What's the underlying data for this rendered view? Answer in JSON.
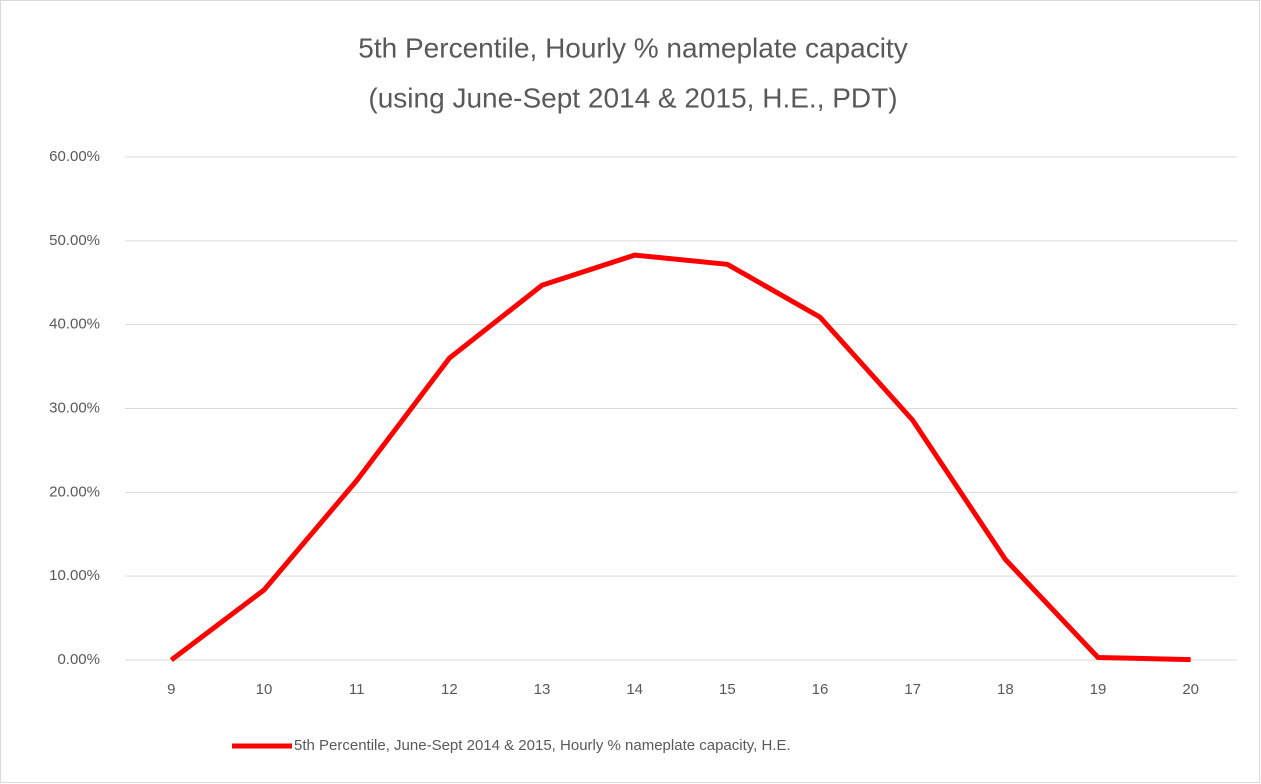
{
  "chart_data": {
    "type": "line",
    "title": "5th Percentile, Hourly % nameplate capacity",
    "subtitle": "(using June-Sept 2014 & 2015, H.E., PDT)",
    "categories": [
      "9",
      "10",
      "11",
      "12",
      "13",
      "14",
      "15",
      "16",
      "17",
      "18",
      "19",
      "20"
    ],
    "series": [
      {
        "name": "5th Percentile, June-Sept 2014 & 2015, Hourly % nameplate capacity, H.E.",
        "color": "#ff0000",
        "values": [
          0,
          8.35,
          21.4,
          36.0,
          44.7,
          48.3,
          47.2,
          40.9,
          28.6,
          12.0,
          0.3,
          0.05
        ]
      }
    ],
    "ylim": [
      0,
      60
    ],
    "yticks": [
      {
        "value": 0,
        "label": "0.00%"
      },
      {
        "value": 10,
        "label": "10.00%"
      },
      {
        "value": 20,
        "label": "20.00%"
      },
      {
        "value": 30,
        "label": "30.00%"
      },
      {
        "value": 40,
        "label": "40.00%"
      },
      {
        "value": 50,
        "label": "50.00%"
      },
      {
        "value": 60,
        "label": "60.00%"
      }
    ],
    "grid": true,
    "legend": "bottom"
  }
}
